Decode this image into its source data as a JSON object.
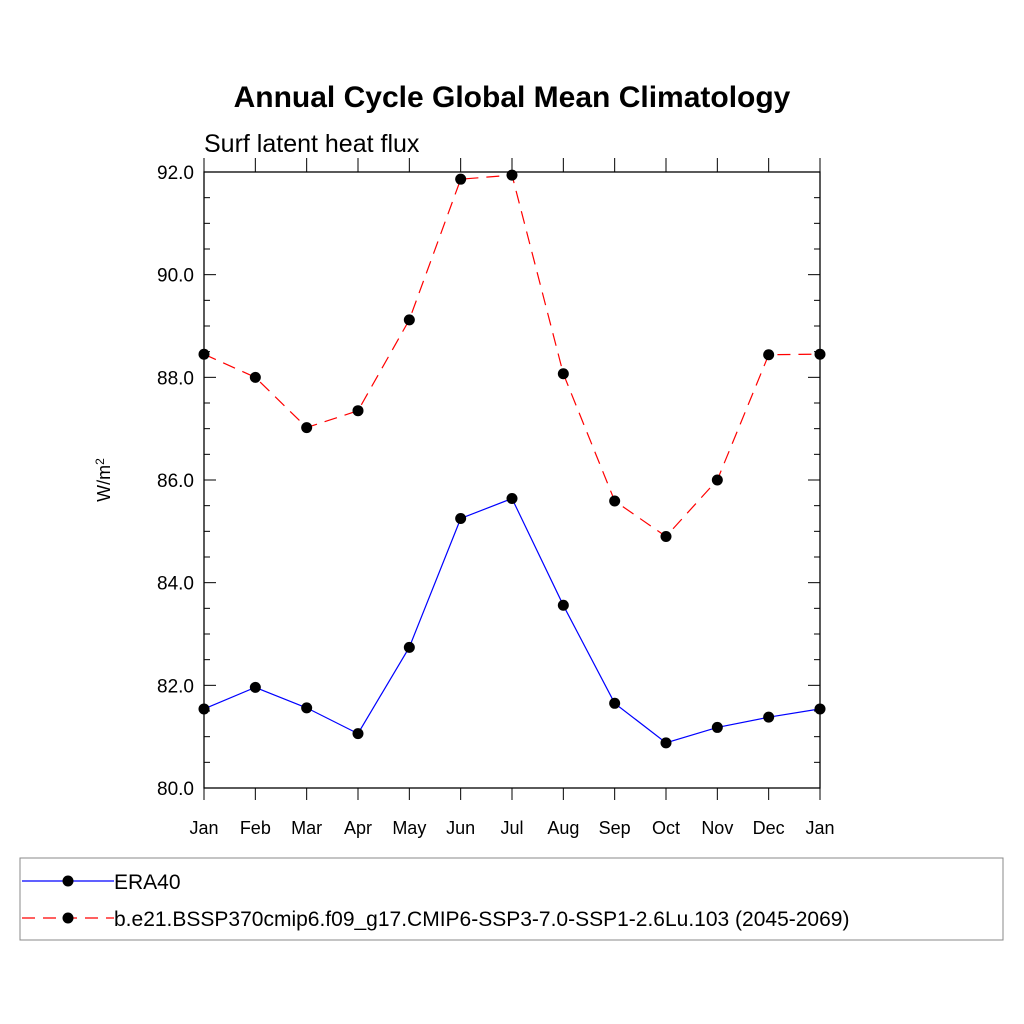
{
  "chart_data": {
    "type": "line",
    "title": "Annual Cycle Global Mean Climatology",
    "subtitle": "Surf latent heat flux",
    "ylabel_base": "W/m",
    "ylabel_sup": "2",
    "xlabel": "",
    "categories": [
      "Jan",
      "Feb",
      "Mar",
      "Apr",
      "May",
      "Jun",
      "Jul",
      "Aug",
      "Sep",
      "Oct",
      "Nov",
      "Dec",
      "Jan"
    ],
    "ylim": [
      80.0,
      92.0
    ],
    "yticks": [
      "80.0",
      "82.0",
      "84.0",
      "86.0",
      "88.0",
      "90.0",
      "92.0"
    ],
    "grid": false,
    "legend_position": "bottom",
    "series": [
      {
        "name": "ERA40",
        "color": "#0000ff",
        "dash": "solid",
        "values": [
          81.54,
          81.96,
          81.56,
          81.06,
          82.74,
          85.25,
          85.64,
          83.56,
          81.65,
          80.88,
          81.18,
          81.38,
          81.54
        ]
      },
      {
        "name": "b.e21.BSSP370cmip6.f09_g17.CMIP6-SSP3-7.0-SSP1-2.6Lu.103 (2045-2069)",
        "color": "#ff0000",
        "dash": "dashed",
        "values": [
          88.45,
          88.0,
          87.02,
          87.35,
          89.12,
          91.86,
          91.94,
          88.07,
          85.59,
          84.9,
          86.0,
          88.44,
          88.45
        ]
      }
    ]
  }
}
